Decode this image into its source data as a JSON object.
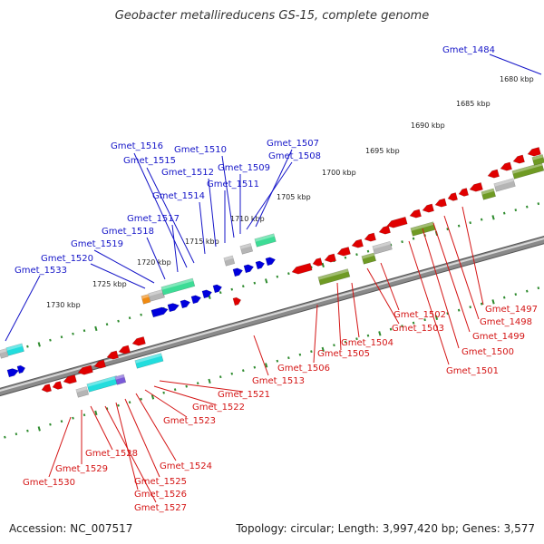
{
  "title": "Geobacter metallireducens GS-15, complete genome",
  "footer": {
    "accession": "Accession: NC_007517",
    "summary": "Topology: circular; Length: 3,997,420 bp; Genes: 3,577"
  },
  "colors": {
    "backbone": "#8a8a8a",
    "tick": "#2e8b2e",
    "forward_gene": "#0000dd",
    "reverse_gene": "#e00000",
    "forward_label": "#1515c8",
    "reverse_label": "#d41515",
    "rna_cyan": "#22dddd",
    "rna_green": "#3ddc96",
    "olive": "#6f9a24",
    "grey": "#b5b5b5",
    "orange": "#f08a10",
    "purple": "#7a5ad8"
  },
  "ruler_labels": [
    "1680 kbp",
    "1685 kbp",
    "1690 kbp",
    "1695 kbp",
    "1700 kbp",
    "1705 kbp",
    "1710 kbp",
    "1715 kbp",
    "1720 kbp",
    "1725 kbp",
    "1730 kbp"
  ],
  "forward_labels": [
    "Gmet_1484",
    "Gmet_1507",
    "Gmet_1508",
    "Gmet_1509",
    "Gmet_1510",
    "Gmet_1511",
    "Gmet_1512",
    "Gmet_1514",
    "Gmet_1515",
    "Gmet_1516",
    "Gmet_1517",
    "Gmet_1518",
    "Gmet_1519",
    "Gmet_1520",
    "Gmet_1533"
  ],
  "reverse_labels": [
    "Gmet_1497",
    "Gmet_1498",
    "Gmet_1499",
    "Gmet_1500",
    "Gmet_1501",
    "Gmet_1502",
    "Gmet_1503",
    "Gmet_1504",
    "Gmet_1505",
    "Gmet_1506",
    "Gmet_1513",
    "Gmet_1521",
    "Gmet_1522",
    "Gmet_1523",
    "Gmet_1524",
    "Gmet_1525",
    "Gmet_1526",
    "Gmet_1527",
    "Gmet_1528",
    "Gmet_1529",
    "Gmet_1530"
  ]
}
